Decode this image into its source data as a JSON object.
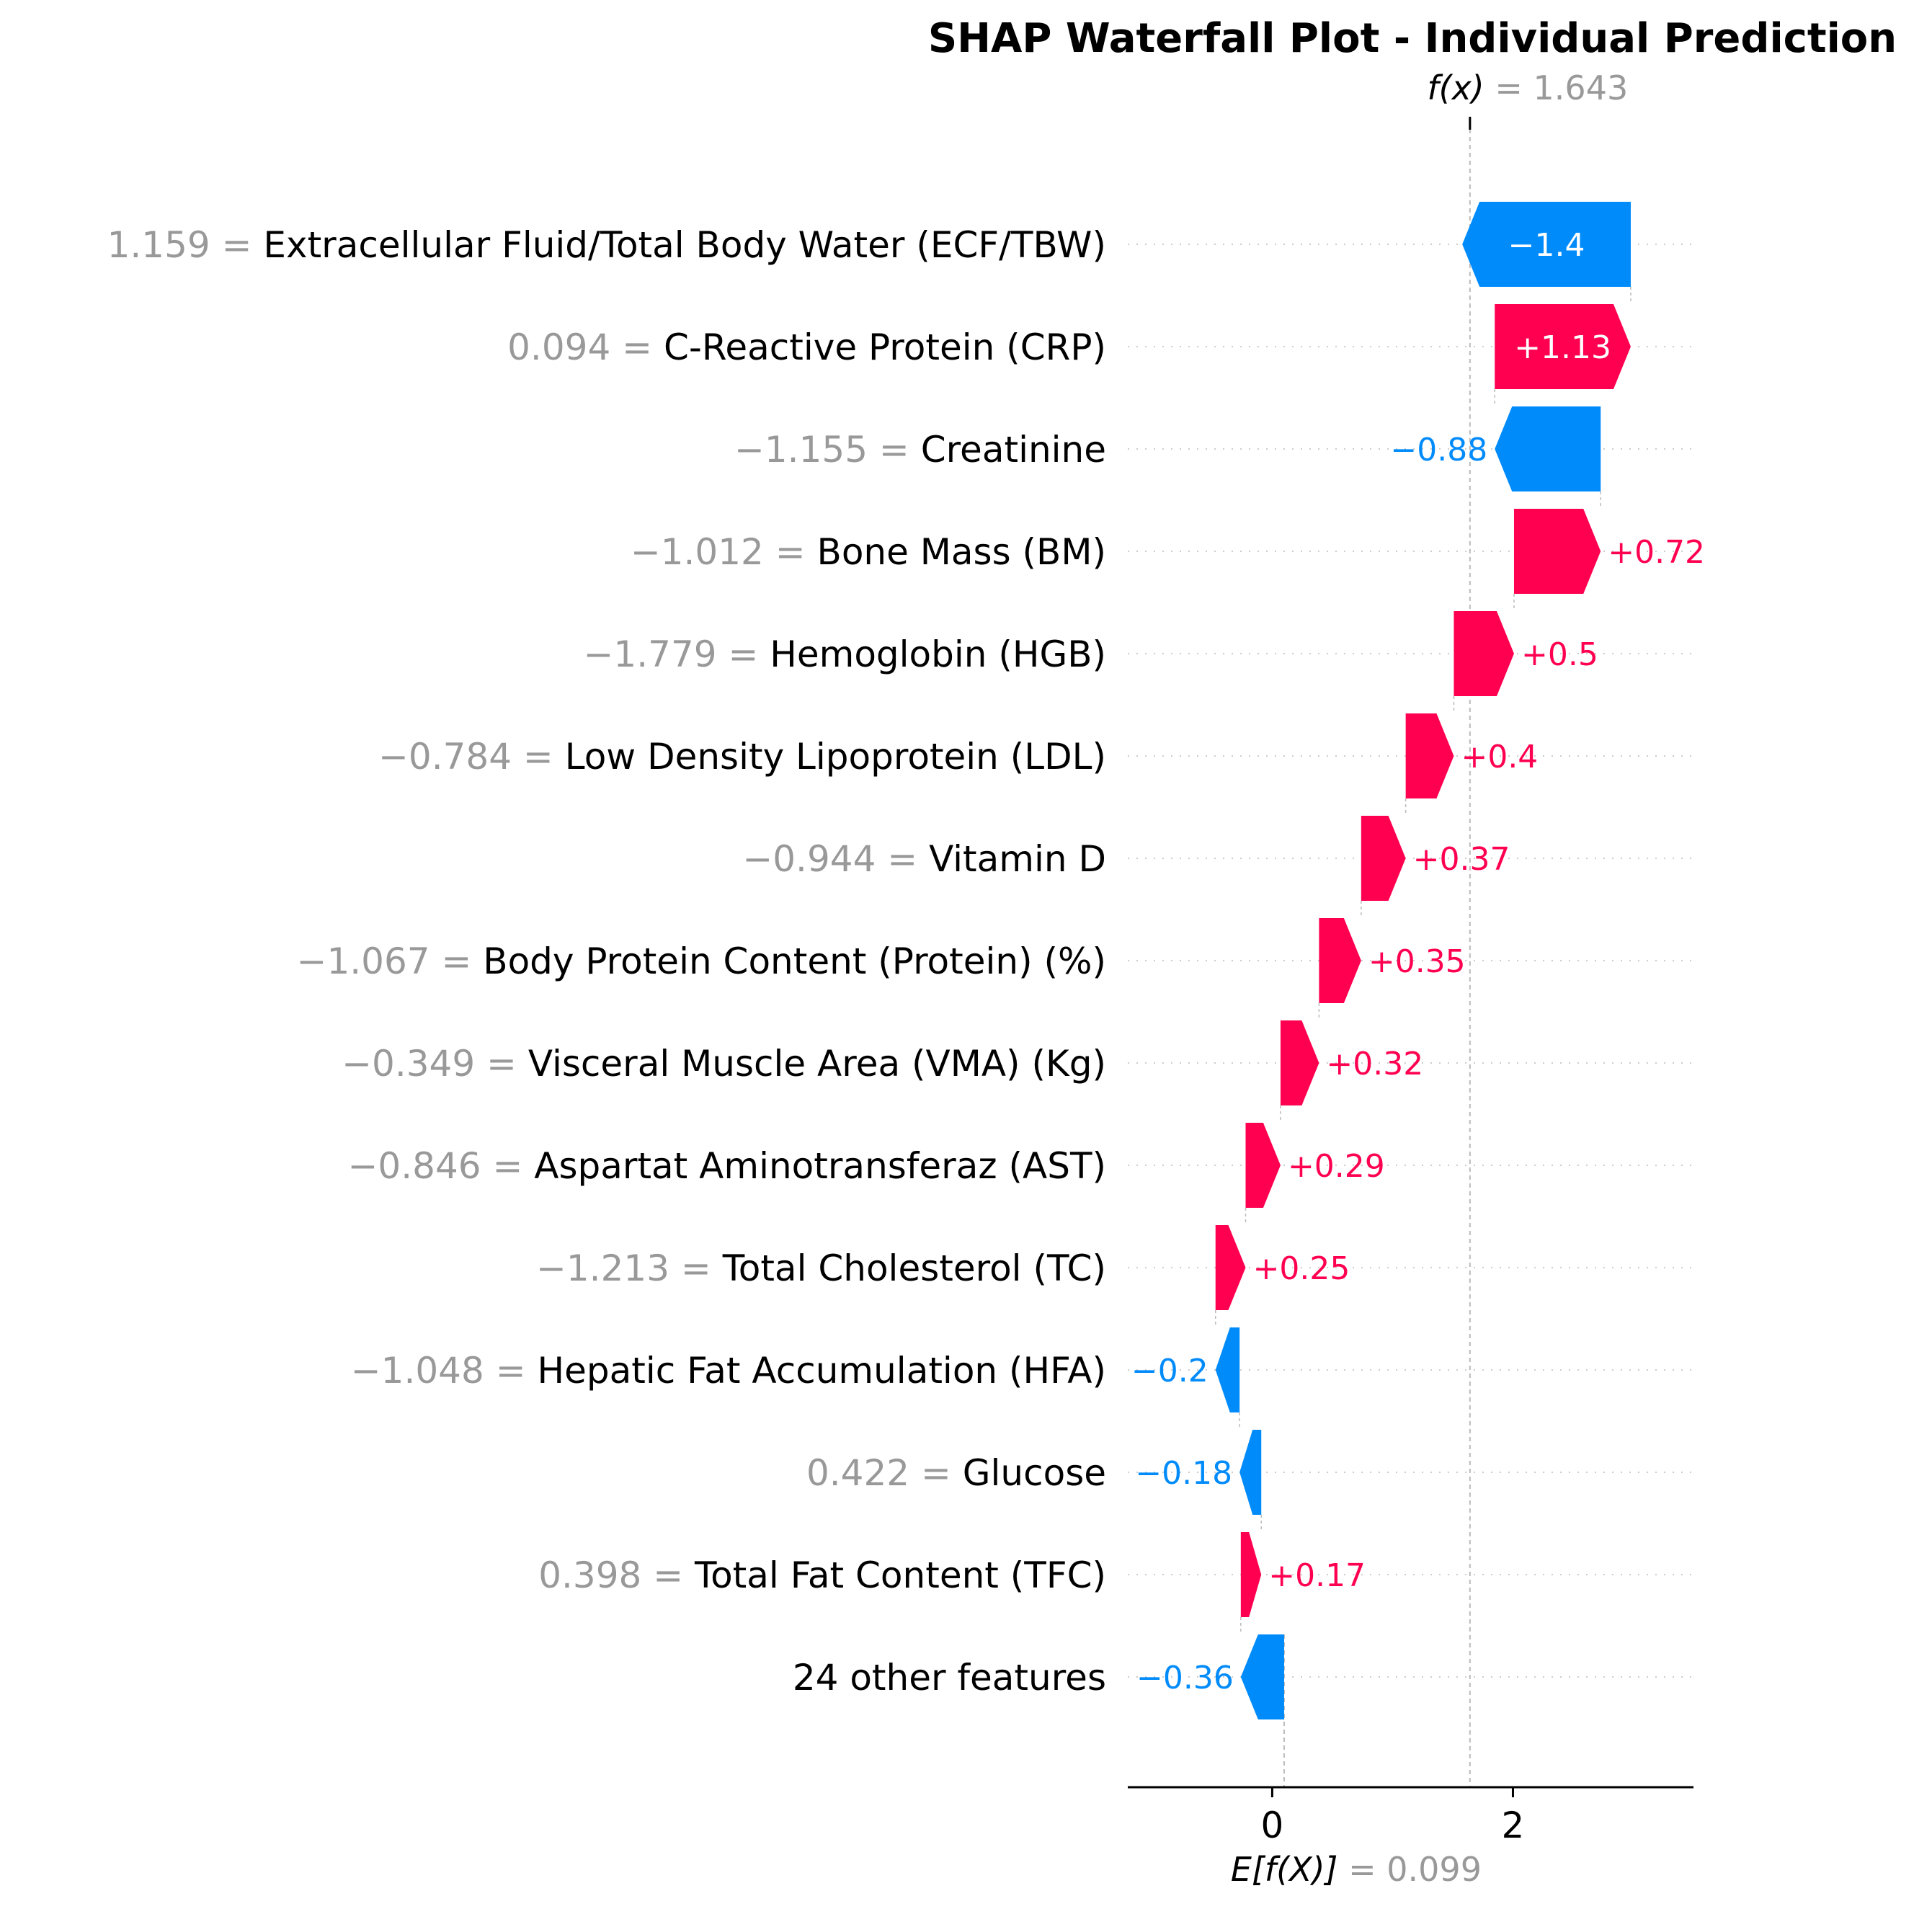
{
  "chart_data": {
    "type": "waterfall",
    "title": "SHAP Waterfall Plot - Individual Prediction",
    "fx_label": "f(x)",
    "fx_value": "1.643",
    "fx": 1.643,
    "efx_label": "E[f(X)]",
    "efx_value": "0.099",
    "base": 0.099,
    "x_ticks": [
      0,
      2
    ],
    "x_tick_labels": [
      "0",
      "2"
    ],
    "xlim": [
      -1.2,
      3.5
    ],
    "colors": {
      "positive": "#ff0051",
      "negative": "#008bfb",
      "value_text": "#999999"
    },
    "features": [
      {
        "value": "1.159",
        "name": "Extracellular Fluid/Total Body Water (ECF/TBW)",
        "shap": -1.4,
        "label": "−1.4"
      },
      {
        "value": "0.094",
        "name": "C-Reactive Protein (CRP)",
        "shap": 1.13,
        "label": "+1.13"
      },
      {
        "value": "−1.155",
        "name": "Creatinine",
        "shap": -0.88,
        "label": "−0.88"
      },
      {
        "value": "−1.012",
        "name": "Bone Mass (BM)",
        "shap": 0.72,
        "label": "+0.72"
      },
      {
        "value": "−1.779",
        "name": "Hemoglobin (HGB)",
        "shap": 0.5,
        "label": "+0.5"
      },
      {
        "value": "−0.784",
        "name": "Low Density Lipoprotein (LDL)",
        "shap": 0.4,
        "label": "+0.4"
      },
      {
        "value": "−0.944",
        "name": "Vitamin D",
        "shap": 0.37,
        "label": "+0.37"
      },
      {
        "value": "−1.067",
        "name": "Body Protein Content (Protein) (%)",
        "shap": 0.35,
        "label": "+0.35"
      },
      {
        "value": "−0.349",
        "name": "Visceral Muscle Area (VMA) (Kg)",
        "shap": 0.32,
        "label": "+0.32"
      },
      {
        "value": "−0.846",
        "name": "Aspartat Aminotransferaz (AST)",
        "shap": 0.29,
        "label": "+0.29"
      },
      {
        "value": "−1.213",
        "name": "Total Cholesterol (TC)",
        "shap": 0.25,
        "label": "+0.25"
      },
      {
        "value": "−1.048",
        "name": "Hepatic Fat Accumulation (HFA)",
        "shap": -0.2,
        "label": "−0.2"
      },
      {
        "value": "0.422",
        "name": "Glucose",
        "shap": -0.18,
        "label": "−0.18"
      },
      {
        "value": "0.398",
        "name": "Total Fat Content (TFC)",
        "shap": 0.17,
        "label": "+0.17"
      },
      {
        "value": "",
        "name": "24 other features",
        "shap": -0.36,
        "label": "−0.36"
      }
    ]
  }
}
